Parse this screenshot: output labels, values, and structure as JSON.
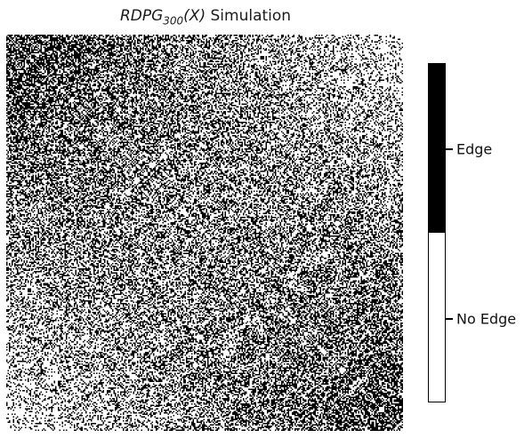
{
  "chart_data": {
    "type": "heatmap",
    "title_prefix": "RDPG",
    "title_subscript": "300",
    "title_arg": "(X)",
    "title_suffix": " Simulation",
    "n_nodes": 300,
    "structure": "symmetric adjacency matrix; dense block of edges at top-left, dense block at bottom-right, moderate density off-diagonal",
    "colors": {
      "edge": "#000000",
      "no_edge": "#ffffff"
    },
    "colorbar": {
      "labels": [
        "Edge",
        "No Edge"
      ],
      "values": [
        1,
        0
      ]
    }
  }
}
